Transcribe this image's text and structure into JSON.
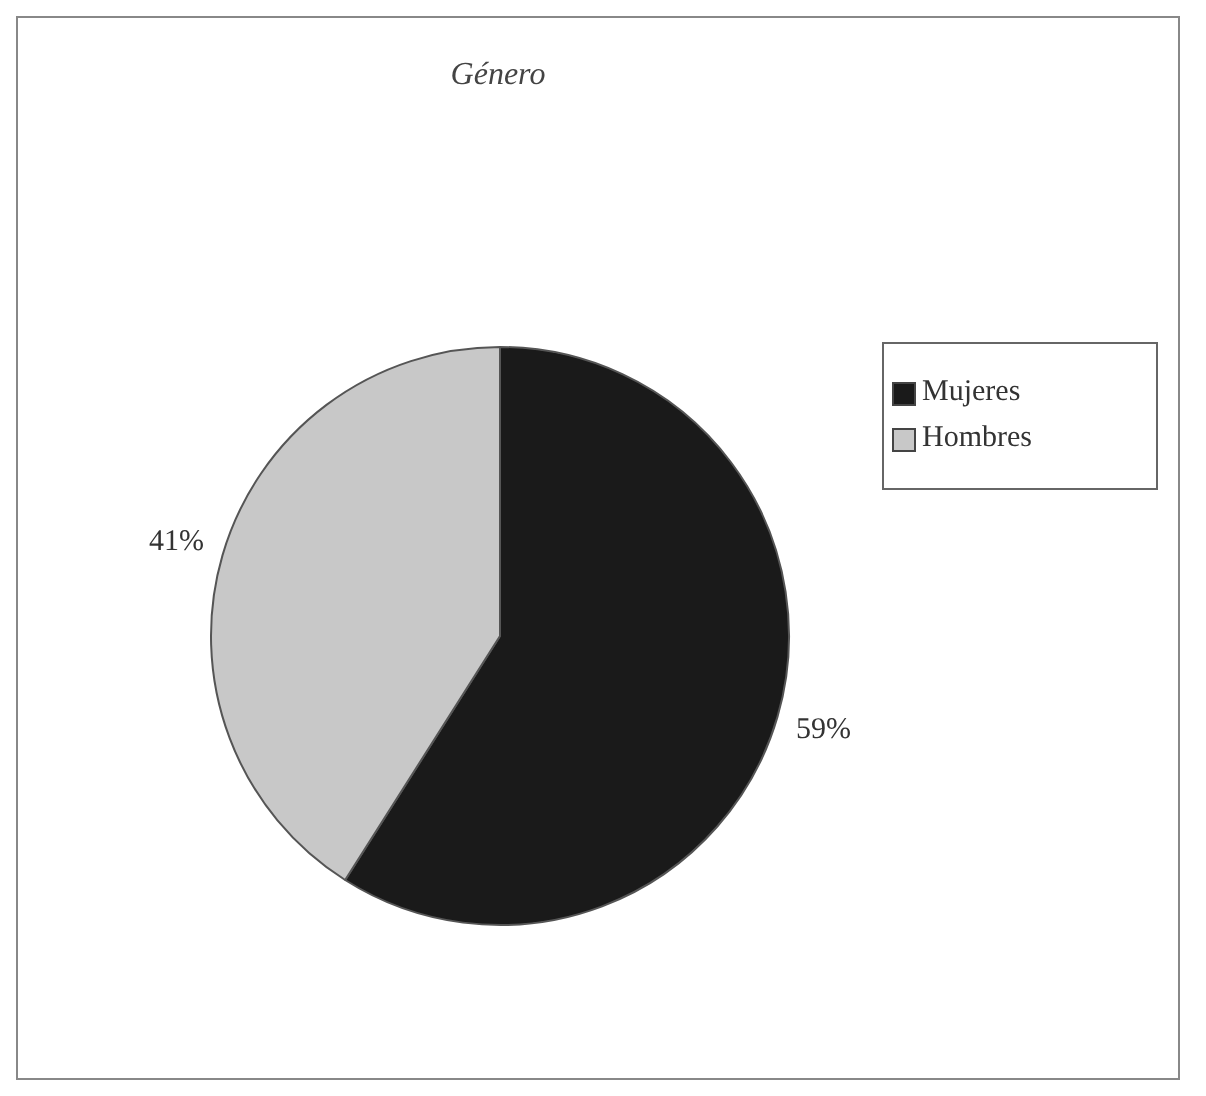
{
  "chart_data": {
    "type": "pie",
    "title": "Género",
    "categories": [
      "Mujeres",
      "Hombres"
    ],
    "values": [
      59,
      41
    ],
    "colors": [
      "#1a1a1a",
      "#c8c8c8"
    ],
    "value_labels": [
      "59%",
      "41%"
    ],
    "legend": "right"
  }
}
